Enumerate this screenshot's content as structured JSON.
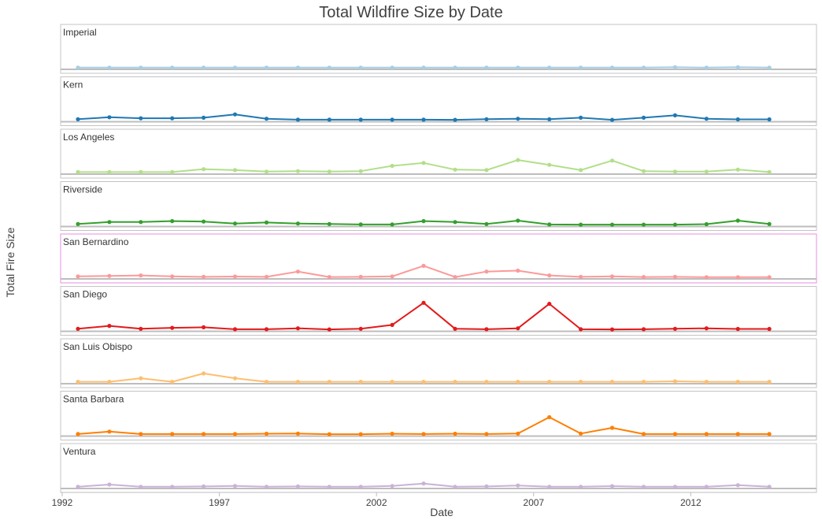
{
  "chart_data": {
    "type": "line",
    "title": "Total Wildfire Size by Date",
    "xlabel": "Date",
    "ylabel": "Total Fire Size",
    "xlim": [
      1992,
      2016
    ],
    "x_ticks": [
      1992,
      1997,
      2002,
      2007,
      2012
    ],
    "x": [
      1992.5,
      1993.5,
      1994.5,
      1995.5,
      1996.5,
      1997.5,
      1998.5,
      1999.5,
      2000.5,
      2001.5,
      2002.5,
      2003.5,
      2004.5,
      2005.5,
      2006.5,
      2007.5,
      2008.5,
      2009.5,
      2010.5,
      2011.5,
      2012.5,
      2013.5,
      2014.5
    ],
    "ylim": [
      0,
      50
    ],
    "highlighted_panel": "San Bernardino",
    "series": [
      {
        "name": "Imperial",
        "color": "#a6cee3",
        "values": [
          0.2,
          0.2,
          0.2,
          0.2,
          0.2,
          0.2,
          0.2,
          0.2,
          0.2,
          0.2,
          0.2,
          0.2,
          0.2,
          0.2,
          0.2,
          0.2,
          0.2,
          0.2,
          0.2,
          0.6,
          0.2,
          0.6,
          0.2
        ]
      },
      {
        "name": "Kern",
        "color": "#1f78b4",
        "values": [
          1,
          3,
          2,
          2,
          2.5,
          6,
          1.5,
          0.5,
          0.5,
          0.5,
          0.5,
          0.5,
          0.3,
          1,
          1.5,
          1,
          2.5,
          0.3,
          2.5,
          5,
          1.5,
          0.8,
          0.8
        ]
      },
      {
        "name": "Los Angeles",
        "color": "#b2df8a",
        "values": [
          0.5,
          0.5,
          0.5,
          0.5,
          3.5,
          2.5,
          1,
          1.5,
          1,
          1.5,
          7,
          10,
          3,
          2.5,
          13,
          8,
          2.5,
          12.5,
          1.5,
          1,
          1,
          3,
          0.5
        ]
      },
      {
        "name": "Riverside",
        "color": "#33a02c",
        "values": [
          1,
          3,
          3,
          4,
          3.5,
          1.5,
          2.5,
          1.5,
          1,
          0.5,
          0.5,
          4,
          3,
          1,
          4.5,
          0.5,
          0.3,
          0.3,
          0.3,
          0.3,
          0.8,
          4.5,
          1
        ]
      },
      {
        "name": "San Bernardino",
        "color": "#fb9a99",
        "values": [
          1,
          1.5,
          2,
          1,
          0.5,
          0.8,
          0.5,
          6,
          0.3,
          0.5,
          1,
          12,
          0.3,
          6,
          7,
          2,
          0.5,
          1,
          0.3,
          0.5,
          0.2,
          0.2,
          0.2
        ]
      },
      {
        "name": "San Diego",
        "color": "#e31a1c",
        "values": [
          1,
          4,
          1,
          2,
          2.5,
          0.5,
          0.5,
          1.5,
          0.3,
          1,
          5,
          28,
          1,
          0.5,
          1.5,
          27,
          0.5,
          0.3,
          0.5,
          1,
          1.5,
          0.8,
          0.8
        ]
      },
      {
        "name": "San Luis Obispo",
        "color": "#fdbf6f",
        "values": [
          0.3,
          0.3,
          4,
          0.3,
          9,
          4,
          0.3,
          0.3,
          0.3,
          0.3,
          0.3,
          0.3,
          0.3,
          0.3,
          0.3,
          0.3,
          0.3,
          0.3,
          0.3,
          0.8,
          0.3,
          0.3,
          0.3
        ]
      },
      {
        "name": "Santa Barbara",
        "color": "#ff7f00",
        "values": [
          0.5,
          3,
          0.5,
          0.5,
          0.5,
          0.5,
          0.8,
          1,
          0.3,
          0.3,
          0.8,
          0.5,
          0.8,
          0.5,
          1,
          18,
          1,
          7,
          0.5,
          0.5,
          0.5,
          0.5,
          0.5
        ]
      },
      {
        "name": "Ventura",
        "color": "#cab2d6",
        "values": [
          0.2,
          2.5,
          0.2,
          0.2,
          0.5,
          1,
          0.2,
          0.5,
          0.2,
          0.2,
          1,
          3.5,
          0.2,
          0.5,
          1.5,
          0.2,
          0.2,
          0.8,
          0.2,
          0.2,
          0.2,
          1.8,
          0.2
        ]
      }
    ]
  }
}
